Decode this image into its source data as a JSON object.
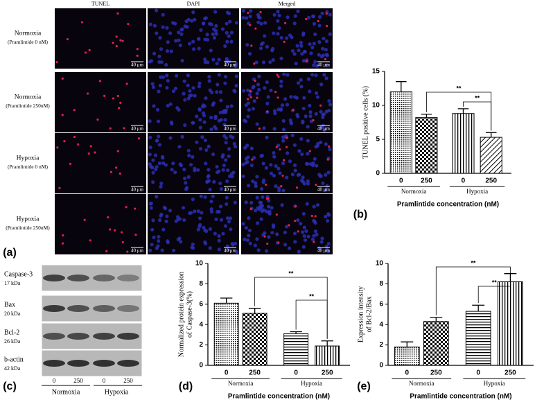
{
  "panel_labels": [
    "(a)",
    "(b)",
    "(c)",
    "(d)",
    "(e)"
  ],
  "microscopy": {
    "columns": [
      "TUNEL",
      "DAPI",
      "Merged"
    ],
    "rows": [
      {
        "condition": "Normoxia",
        "treatment": "(Pramlintide 0 nM)"
      },
      {
        "condition": "Normoxia",
        "treatment": "(Pramlintide 250nM)"
      },
      {
        "condition": "Hypoxia",
        "treatment": "(Pramlintide 0 nM)"
      },
      {
        "condition": "Hypoxia",
        "treatment": "(Pramlintide 250nM)"
      }
    ],
    "scale_bar": "40 μm"
  },
  "western_blot": {
    "proteins": [
      {
        "name": "Caspase-3",
        "size": "17 kDa"
      },
      {
        "name": "Bax",
        "size": "20 kDa"
      },
      {
        "name": "Bcl-2",
        "size": "26 kDa"
      },
      {
        "name": "b-actin",
        "size": "42 kDa"
      }
    ],
    "lanes": [
      "0",
      "250",
      "0",
      "250"
    ],
    "groups": [
      "Normoxia",
      "Hypoxia"
    ]
  },
  "chart_data": [
    {
      "type": "bar",
      "ylabel": [
        "TUNEL positive cells (%)"
      ],
      "xlabel": "Pramlintide concentration (nM)",
      "categories": [
        "0",
        "250",
        "0",
        "250"
      ],
      "groups": [
        "Normoxia",
        "Hypoxia"
      ],
      "values": [
        12,
        8.2,
        8.8,
        5.3
      ],
      "errors": [
        1.5,
        0.5,
        0.7,
        0.7
      ],
      "ylim": [
        0,
        15
      ],
      "yticks": [
        0,
        5,
        10,
        15
      ],
      "annotations": [
        "**",
        "**"
      ],
      "color": "#000000"
    },
    {
      "type": "bar",
      "ylabel": [
        "Normalized protein expression",
        "of Caspase-3(%)"
      ],
      "xlabel": "Pramlintide concentration (nM)",
      "categories": [
        "0",
        "250",
        "0",
        "250"
      ],
      "groups": [
        "Normoxia",
        "Hypoxia"
      ],
      "values": [
        6.1,
        5.1,
        3.1,
        1.9
      ],
      "errors": [
        0.5,
        0.5,
        0.2,
        0.5
      ],
      "ylim": [
        0,
        10
      ],
      "yticks": [
        0,
        2,
        4,
        6,
        8,
        10
      ],
      "annotations": [
        "**",
        "**"
      ],
      "color": "#000000"
    },
    {
      "type": "bar",
      "ylabel": [
        "Expression intensity",
        "of Bcl-2/Bax"
      ],
      "xlabel": "Pramlintide concentration (nM)",
      "categories": [
        "0",
        "250",
        "0",
        "250"
      ],
      "groups": [
        "Normoxia",
        "Hypoxia"
      ],
      "values": [
        1.8,
        4.3,
        5.3,
        8.2
      ],
      "errors": [
        0.5,
        0.4,
        0.6,
        0.8
      ],
      "ylim": [
        0,
        10
      ],
      "yticks": [
        0,
        2,
        4,
        6,
        8,
        10
      ],
      "annotations": [
        "**",
        "**"
      ],
      "color": "#000000"
    }
  ]
}
